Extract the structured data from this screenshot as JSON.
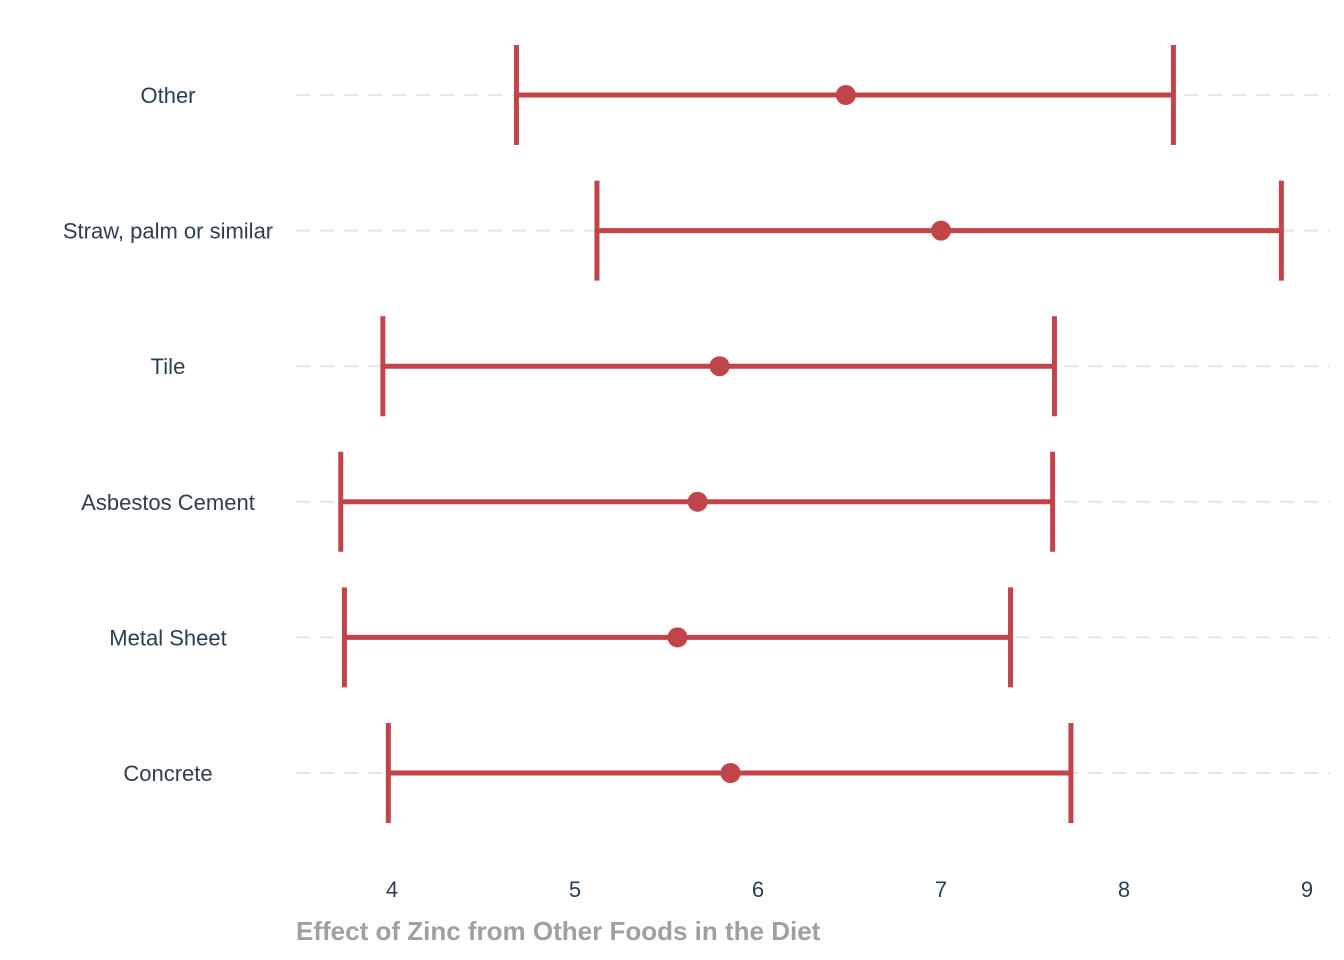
{
  "chart_data": {
    "type": "errorbar",
    "xlabel": "Effect of Zinc from Other Foods in the Diet",
    "ylabel": "",
    "xlim": [
      3.5,
      9.1
    ],
    "xticks": [
      "4",
      "5",
      "6",
      "7",
      "8",
      "9"
    ],
    "grid": "horizontal-dashed",
    "colors": {
      "marker": "#c0444a",
      "text": "#2c3e50",
      "axis_title": "#a0a0a0",
      "grid": "#e6e6e6"
    },
    "categories": [
      "Other",
      "Straw, palm or similar",
      "Tile",
      "Asbestos Cement",
      "Metal Sheet",
      "Concrete"
    ],
    "estimate": [
      6.48,
      7.0,
      5.79,
      5.67,
      5.56,
      5.85
    ],
    "lower": [
      4.68,
      5.12,
      3.95,
      3.72,
      3.74,
      3.98
    ],
    "upper": [
      8.27,
      8.86,
      7.62,
      7.61,
      7.38,
      7.71
    ]
  }
}
